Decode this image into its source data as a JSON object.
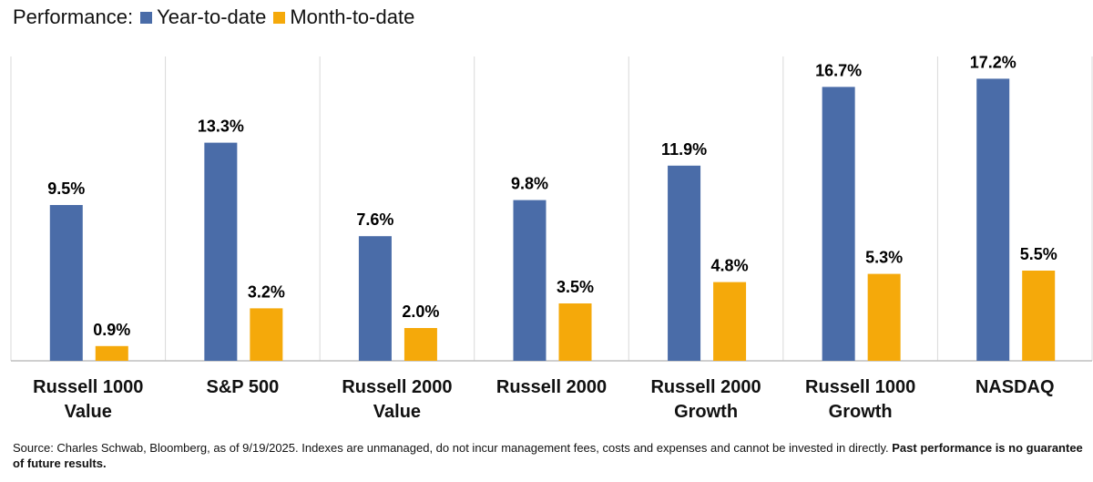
{
  "chart_data": {
    "type": "bar",
    "title": "Performance:",
    "categories": [
      "Russell 1000 Value",
      "S&P 500",
      "Russell 2000 Value",
      "Russell 2000",
      "Russell 2000 Growth",
      "Russell 1000 Growth",
      "NASDAQ"
    ],
    "series": [
      {
        "name": "Year-to-date",
        "color": "#4a6ca8",
        "values": [
          9.5,
          13.3,
          7.6,
          9.8,
          11.9,
          16.7,
          17.2
        ],
        "value_labels": [
          "9.5%",
          "13.3%",
          "7.6%",
          "9.8%",
          "11.9%",
          "16.7%",
          "17.2%"
        ]
      },
      {
        "name": "Month-to-date",
        "color": "#f5a90a",
        "values": [
          0.9,
          3.2,
          2.0,
          3.5,
          4.8,
          5.3,
          5.5
        ],
        "value_labels": [
          "0.9%",
          "3.2%",
          "2.0%",
          "3.5%",
          "4.8%",
          "5.3%",
          "5.5%"
        ]
      }
    ],
    "source": "Source: Charles Schwab, Bloomberg, as of 9/19/2025.  Indexes are unmanaged, do not incur management fees, costs and expenses and cannot be invested in directly.",
    "disclaimer": "Past performance is no guarantee of future results."
  }
}
